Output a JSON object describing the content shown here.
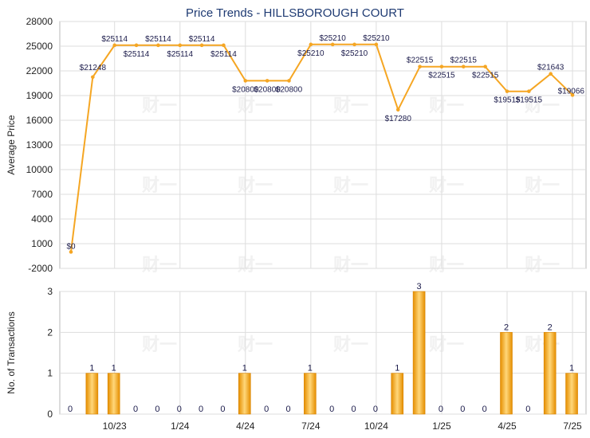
{
  "chart_data": [
    {
      "type": "line",
      "title": "Price Trends - HILLSBOROUGH COURT",
      "ylabel": "Average Price",
      "ylim": [
        -2000,
        28000
      ],
      "yticks": [
        -2000,
        1000,
        4000,
        7000,
        10000,
        13000,
        16000,
        19000,
        22000,
        25000,
        28000
      ],
      "ytick_labels": [
        "-2000",
        "1000",
        "4000",
        "7000",
        "10000",
        "13000",
        "16000",
        "19000",
        "22000",
        "25000",
        "28000"
      ],
      "xtick_labels": [
        "10/23",
        "1/24",
        "4/24",
        "7/24",
        "10/24",
        "1/25",
        "4/25",
        "7/25"
      ],
      "grid": true,
      "color": "#f5a623",
      "values": [
        0,
        21248,
        25114,
        25114,
        25114,
        25114,
        25114,
        25114,
        20800,
        20800,
        20800,
        25210,
        25210,
        25210,
        25210,
        17280,
        22515,
        22515,
        22515,
        22515,
        19515,
        19515,
        21643,
        19066
      ],
      "labels": [
        "$0",
        "$21248",
        "$25114",
        "$25114",
        "$25114",
        "$25114",
        "$25114",
        "$25114",
        "$20800",
        "$20800",
        "$20800",
        "$25210",
        "$25210",
        "$25210",
        "$25210",
        "$17280",
        "$22515",
        "$22515",
        "$22515",
        "$22515",
        "$19515",
        "$19515",
        "$21643",
        "$19066"
      ]
    },
    {
      "type": "bar",
      "ylabel": "No. of Transactions",
      "ylim": [
        0,
        3
      ],
      "yticks": [
        0,
        1,
        2,
        3
      ],
      "ytick_labels": [
        "0",
        "1",
        "2",
        "3"
      ],
      "xtick_labels": [
        "10/23",
        "1/24",
        "4/24",
        "7/24",
        "10/24",
        "1/25",
        "4/25",
        "7/25"
      ],
      "grid": true,
      "color": "#f5a623",
      "values": [
        0,
        1,
        1,
        0,
        0,
        0,
        0,
        0,
        1,
        0,
        0,
        1,
        0,
        0,
        0,
        1,
        3,
        0,
        0,
        0,
        2,
        0,
        2,
        1
      ],
      "labels": [
        "0",
        "1",
        "1",
        "0",
        "0",
        "0",
        "0",
        "0",
        "1",
        "0",
        "0",
        "1",
        "0",
        "0",
        "0",
        "1",
        "3",
        "0",
        "0",
        "0",
        "2",
        "0",
        "2",
        "1"
      ]
    }
  ],
  "watermark": "财一"
}
